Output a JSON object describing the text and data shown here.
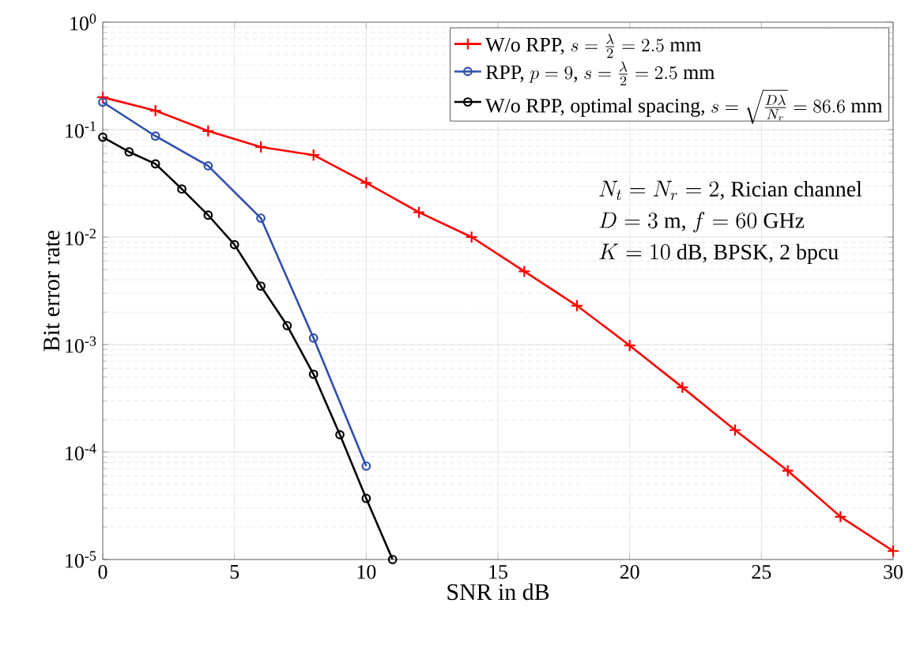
{
  "chart_data": {
    "type": "line",
    "xlabel": "SNR in dB",
    "ylabel": "Bit error rate",
    "x": [
      0,
      2,
      4,
      6,
      8,
      10,
      12,
      14,
      16,
      18,
      20,
      22,
      24,
      26,
      28,
      30
    ],
    "series": [
      {
        "name": "\\text{W/o RPP, }s=\\frac{\\lambda}{2}=2.5\\text{ mm}",
        "color": "#ff0000",
        "marker": "cross",
        "values": [
          0.2,
          0.15,
          0.097,
          0.069,
          0.058,
          0.032,
          0.017,
          0.01,
          0.0048,
          0.0023,
          0.00098,
          0.0004,
          0.00016,
          6.7e-05,
          2.5e-05,
          1.2e-05
        ]
      },
      {
        "name": "\\text{RPP, }p=9\\text{, }s=\\frac{\\lambda}{2}=2.5\\text{ mm}",
        "color": "#2e4fae",
        "marker": "circle",
        "x": [
          0,
          2,
          4,
          6,
          8,
          10
        ],
        "values": [
          0.18,
          0.087,
          0.046,
          0.015,
          0.00115,
          7.4e-05
        ]
      },
      {
        "name": "\\text{W/o RPP, optimal spacing, }s=\\sqrt{\\frac{D\\lambda}{N_r}}=86.6\\text{ mm}",
        "color": "#000000",
        "marker": "circle",
        "x": [
          0,
          1,
          2,
          3,
          4,
          5,
          6,
          7,
          8,
          9,
          10,
          11
        ],
        "values": [
          0.085,
          0.062,
          0.048,
          0.028,
          0.016,
          0.0085,
          0.0035,
          0.0015,
          0.00053,
          0.000145,
          3.7e-05,
          1e-05
        ]
      }
    ],
    "log": "y",
    "grid": true,
    "legend": "top right",
    "line_style": "solid",
    "xlim": [
      0,
      30
    ],
    "xticks": [
      0,
      5,
      10,
      15,
      20,
      25,
      30
    ],
    "ylim": [
      1e-05,
      1
    ],
    "yticks": [
      {
        "value": 1e-05,
        "label": "10$^{-5}$"
      },
      {
        "value": 0.0001,
        "label": "10$^{-4}$"
      },
      {
        "value": 0.001,
        "label": "10$^{-3}$"
      },
      {
        "value": 0.01,
        "label": "10$^{-2}$"
      },
      {
        "value": 0.1,
        "label": "10$^{-1}$"
      },
      {
        "value": 1,
        "label": "10$^{0}$"
      }
    ],
    "annotations": [
      "N_t=N_r=2\\text{, Rician channel}",
      "D=3\\text{ m, }f=60\\text{ GHz}",
      "K=10\\text{ dB, BPSK, 2 bpcu}"
    ]
  }
}
